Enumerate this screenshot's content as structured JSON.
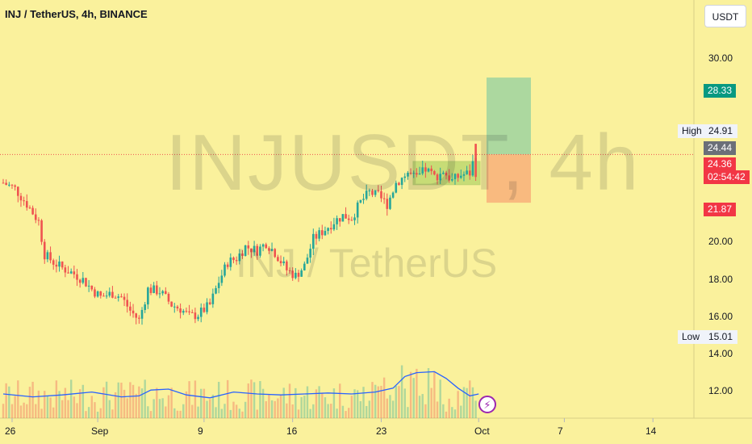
{
  "header": {
    "symbol_title": "INJ / TetherUS, 4h, BINANCE",
    "currency_button": "USDT"
  },
  "watermark": {
    "ticker": "INJUSDT, 4h",
    "pair": "INJ / TetherUS"
  },
  "chart_data": {
    "type": "candlestick",
    "title": "INJ / TetherUS, 4h, BINANCE",
    "y_axis": {
      "ticks": [
        12,
        14,
        16,
        18,
        20,
        30
      ],
      "tick_labels": [
        "12.00",
        "14.00",
        "16.00",
        "18.00",
        "20.00",
        "30.00"
      ],
      "range": [
        11.0,
        31.5
      ]
    },
    "x_axis": {
      "tick_labels": [
        "26",
        "Sep",
        "9",
        "16",
        "23",
        "Oct",
        "7",
        "14"
      ]
    },
    "price_tags": {
      "take_profit": "28.33",
      "high_label": "High",
      "high_value": "24.91",
      "last_close": "24.44",
      "current_price": "24.36",
      "countdown": "02:54:42",
      "stop_loss": "21.87",
      "low_label": "Low",
      "low_value": "15.01"
    },
    "trade_setup": {
      "entry": 24.36,
      "take_profit": 28.33,
      "stop_loss": 21.87
    },
    "consolidation_box": {
      "low": 22.8,
      "high": 24.0
    },
    "price_path": [
      [
        0,
        22.9
      ],
      [
        4,
        22.6
      ],
      [
        8,
        21.8
      ],
      [
        12,
        20.9
      ],
      [
        14,
        19.2
      ],
      [
        17,
        18.8
      ],
      [
        20,
        18.5
      ],
      [
        24,
        18.2
      ],
      [
        27,
        17.9
      ],
      [
        30,
        17.4
      ],
      [
        33,
        17.0
      ],
      [
        37,
        17.2
      ],
      [
        40,
        17.0
      ],
      [
        43,
        16.3
      ],
      [
        46,
        15.8
      ],
      [
        49,
        17.4
      ],
      [
        53,
        17.3
      ],
      [
        57,
        16.6
      ],
      [
        60,
        16.4
      ],
      [
        63,
        16.0
      ],
      [
        66,
        16.1
      ],
      [
        70,
        16.6
      ],
      [
        73,
        17.8
      ],
      [
        76,
        18.8
      ],
      [
        79,
        19.0
      ],
      [
        82,
        19.6
      ],
      [
        86,
        19.4
      ],
      [
        89,
        19.8
      ],
      [
        92,
        19.3
      ],
      [
        96,
        18.4
      ],
      [
        99,
        18.1
      ],
      [
        102,
        18.6
      ],
      [
        105,
        20.0
      ],
      [
        109,
        20.5
      ],
      [
        112,
        20.9
      ],
      [
        115,
        21.2
      ],
      [
        118,
        21.1
      ],
      [
        121,
        21.9
      ],
      [
        124,
        22.4
      ],
      [
        127,
        22.2
      ],
      [
        130,
        21.8
      ],
      [
        133,
        22.9
      ],
      [
        137,
        23.4
      ],
      [
        140,
        23.1
      ],
      [
        143,
        23.6
      ],
      [
        146,
        23.2
      ],
      [
        149,
        23.5
      ],
      [
        152,
        23.0
      ],
      [
        155,
        23.3
      ],
      [
        158,
        23.4
      ],
      [
        160,
        24.44
      ]
    ],
    "volume_ma_path": [
      [
        0,
        12.0
      ],
      [
        10,
        11.85
      ],
      [
        20,
        11.95
      ],
      [
        30,
        12.1
      ],
      [
        40,
        11.85
      ],
      [
        46,
        11.9
      ],
      [
        50,
        12.2
      ],
      [
        56,
        12.25
      ],
      [
        62,
        11.95
      ],
      [
        70,
        11.8
      ],
      [
        78,
        12.1
      ],
      [
        86,
        12.0
      ],
      [
        94,
        11.95
      ],
      [
        102,
        12.0
      ],
      [
        110,
        12.05
      ],
      [
        118,
        12.0
      ],
      [
        126,
        12.1
      ],
      [
        132,
        12.3
      ],
      [
        136,
        12.9
      ],
      [
        140,
        13.1
      ],
      [
        146,
        13.15
      ],
      [
        150,
        12.8
      ],
      [
        154,
        12.3
      ],
      [
        158,
        11.9
      ],
      [
        161,
        12.0
      ]
    ],
    "colors": {
      "up": "#26a69a",
      "down": "#ef5350",
      "background": "#faf19c",
      "volume_ma": "#2962ff",
      "profit_zone": "#9ed4a0",
      "loss_zone": "#f8b07a"
    }
  }
}
